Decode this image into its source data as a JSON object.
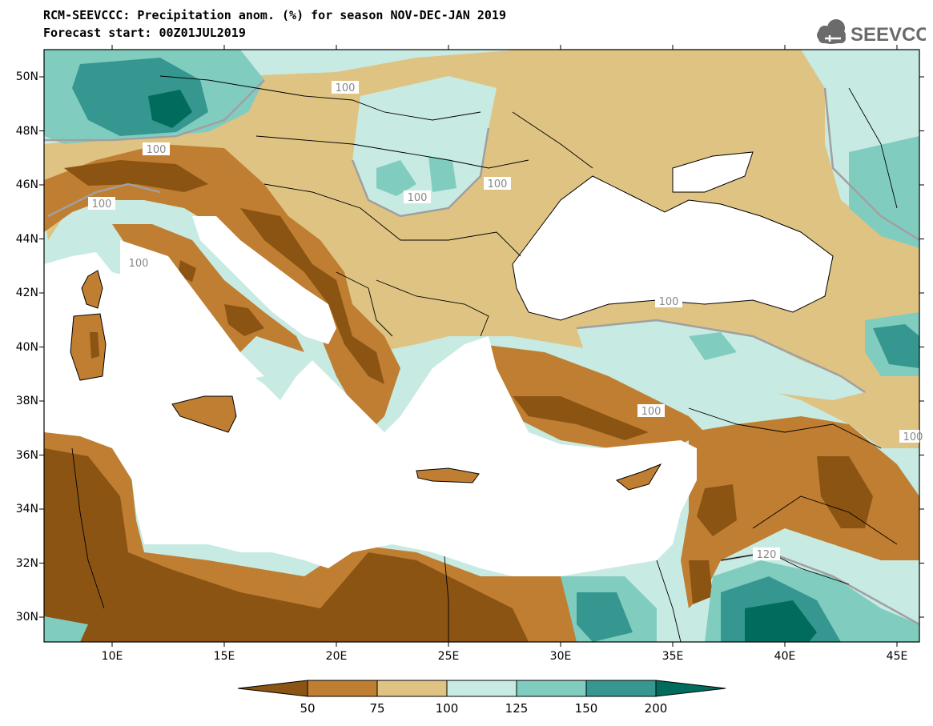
{
  "header": {
    "title_line1": "RCM-SEEVCCC: Precipitation anom. (%) for season NOV-DEC-JAN 2019",
    "title_line2": "Forecast start: 00Z01JUL2019"
  },
  "logo": {
    "text": "SEEVCCC",
    "icon": "cloud-icon"
  },
  "map": {
    "lat_labels": [
      "50N",
      "48N",
      "46N",
      "44N",
      "42N",
      "40N",
      "38N",
      "36N",
      "34N",
      "32N",
      "30N"
    ],
    "lon_labels": [
      "10E",
      "15E",
      "20E",
      "25E",
      "30E",
      "35E",
      "40E",
      "45E"
    ],
    "contour_labels": [
      "100",
      "100",
      "100",
      "100",
      "100",
      "100",
      "100",
      "100",
      "100",
      "120"
    ]
  },
  "colorbar": {
    "labels": [
      "50",
      "75",
      "100",
      "125",
      "150",
      "200"
    ],
    "colors": {
      "lt50": "#8b5413",
      "50_75": "#bf7e31",
      "75_100": "#dfc382",
      "100_125": "#c7eae3",
      "125_150": "#80cdc0",
      "150_200": "#35978f",
      "gt200": "#016c5e"
    }
  },
  "colors": {
    "land_mask": "#ffffff",
    "contour_line": "#a0a0a0",
    "border": "#000000"
  }
}
